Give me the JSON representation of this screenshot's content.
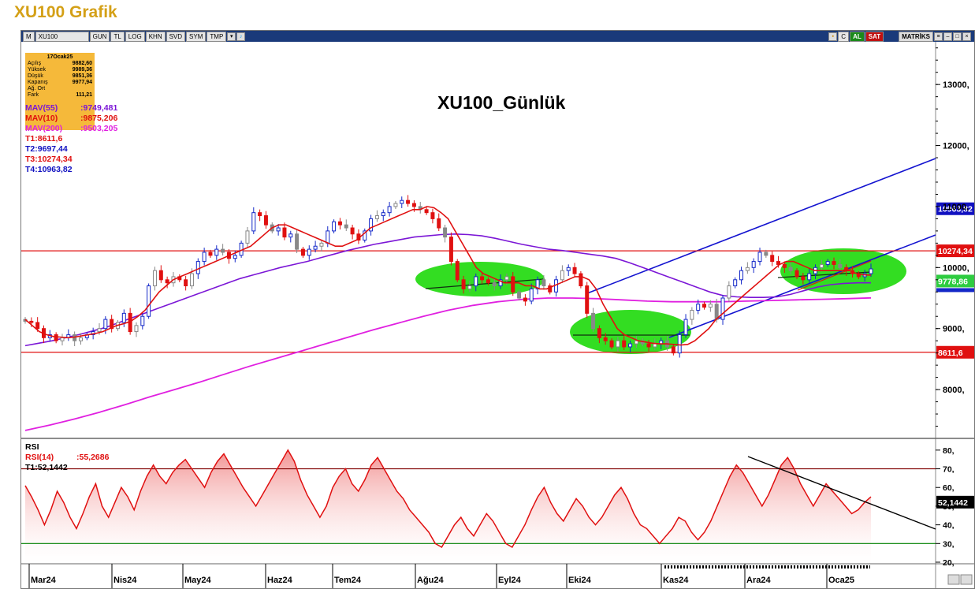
{
  "page": {
    "title": "XU100 Grafik"
  },
  "toolbar": {
    "symbol_label": "XU100",
    "buttons": [
      "GUN",
      "TL",
      "LOG",
      "KHN",
      "SVD",
      "SYM",
      "TMP"
    ],
    "right_buttons": {
      "c_label": "C",
      "al_label": "AL",
      "sat_label": "SAT",
      "matriks_label": "MATRİKS"
    }
  },
  "info_box": {
    "date": "17Ocak25",
    "rows": [
      {
        "label": "Açılış",
        "value": "9882,60"
      },
      {
        "label": "Yüksek",
        "value": "9989,36"
      },
      {
        "label": "Düşük",
        "value": "9851,36"
      },
      {
        "label": "Kapanış",
        "value": "9977,94"
      },
      {
        "label": "Ağ. Ort",
        "value": ""
      },
      {
        "label": "Fark",
        "value": "111,21"
      }
    ]
  },
  "legend": [
    {
      "name": "MAV(55)",
      "value": ":9749,481",
      "color": "#7b16d6"
    },
    {
      "name": "MAV(10)",
      "value": ":9875,206",
      "color": "#e01010"
    },
    {
      "name": "MAV(200)",
      "value": ":9503,205",
      "color": "#e020e0"
    },
    {
      "name": "T1:8611,6",
      "value": "",
      "color": "#e01010"
    },
    {
      "name": "T2:9697,44",
      "value": "",
      "color": "#1010c0"
    },
    {
      "name": "T3:10274,34",
      "value": "",
      "color": "#e01010"
    },
    {
      "name": "T4:10963,82",
      "value": "",
      "color": "#1010c0"
    }
  ],
  "rsi_legend": [
    {
      "name": "RSI",
      "value": "",
      "color": "#000000"
    },
    {
      "name": "RSI(14)",
      "value": ":55,2686",
      "color": "#e01010"
    },
    {
      "name": "T1:52,1442",
      "value": "",
      "color": "#000000"
    }
  ],
  "chart_data": {
    "type": "candlestick",
    "title": "XU100_Günlük",
    "x_ticks": [
      "Mar24",
      "Nis24",
      "May24",
      "Haz24",
      "Tem24",
      "Ağu24",
      "Eyl24",
      "Eki24",
      "Kas24",
      "Ara24",
      "Oca25"
    ],
    "y_ticks": [
      "13000,",
      "12000,",
      "11000,",
      "10000,",
      "9000,",
      "8000,"
    ],
    "y_tick_values": [
      13000,
      12000,
      11000,
      10000,
      9000,
      8000
    ],
    "ylim": [
      7200,
      13700
    ],
    "close_series": [
      9120,
      9100,
      9000,
      8850,
      8900,
      8800,
      8850,
      8900,
      8800,
      8850,
      8900,
      8950,
      9000,
      9150,
      9000,
      9100,
      9250,
      8950,
      9050,
      9200,
      9700,
      9950,
      9800,
      9750,
      9850,
      9800,
      9700,
      9900,
      10100,
      10250,
      10200,
      10300,
      10250,
      10150,
      10200,
      10400,
      10600,
      10900,
      10850,
      10700,
      10600,
      10650,
      10500,
      10550,
      10300,
      10200,
      10300,
      10350,
      10400,
      10600,
      10750,
      10700,
      10650,
      10550,
      10450,
      10600,
      10800,
      10850,
      10900,
      11000,
      11050,
      11100,
      11050,
      11000,
      10950,
      10900,
      10800,
      10650,
      10500,
      10100,
      9800,
      9650,
      9700,
      9850,
      9800,
      9750,
      9700,
      9800,
      9850,
      9600,
      9500,
      9450,
      9650,
      9800,
      9700,
      9600,
      9800,
      9950,
      10000,
      9900,
      9700,
      9250,
      9000,
      8850,
      8800,
      8700,
      8800,
      8700,
      8750,
      8800,
      8750,
      8700,
      8750,
      8800,
      8700,
      8600,
      8900,
      9150,
      9300,
      9400,
      9350,
      9400,
      9150,
      9500,
      9700,
      9800,
      9950,
      10000,
      10100,
      10250,
      10200,
      10100,
      10050,
      10000,
      9950,
      9850,
      9800,
      9900,
      10000,
      10050,
      10100,
      10050,
      10000,
      9950,
      9900,
      9850,
      9900,
      9978
    ],
    "series": [
      {
        "name": "MAV(10)",
        "color": "#e01010",
        "values": [
          9150,
          9050,
          8950,
          8900,
          8870,
          8860,
          8850,
          8860,
          8880,
          8900,
          8920,
          8950,
          9000,
          9050,
          9080,
          9120,
          9200,
          9300,
          9450,
          9600,
          9700,
          9800,
          9850,
          9900,
          9950,
          10000,
          10050,
          10100,
          10150,
          10200,
          10250,
          10300,
          10350,
          10450,
          10550,
          10650,
          10700,
          10700,
          10650,
          10600,
          10550,
          10500,
          10450,
          10400,
          10350,
          10350,
          10400,
          10450,
          10550,
          10650,
          10700,
          10750,
          10800,
          10850,
          10900,
          10950,
          10950,
          11000,
          10980,
          10900,
          10800,
          10600,
          10400,
          10200,
          10000,
          9900,
          9850,
          9800,
          9750,
          9750,
          9750,
          9700,
          9700,
          9650,
          9650,
          9700,
          9750,
          9800,
          9850,
          9850,
          9800,
          9650,
          9400,
          9200,
          9000,
          8900,
          8850,
          8800,
          8780,
          8760,
          8750,
          8750,
          8740,
          8730,
          8740,
          8800,
          8900,
          9000,
          9150,
          9250,
          9350,
          9450,
          9550,
          9650,
          9750,
          9850,
          9950,
          10050,
          10100,
          10100,
          10050,
          10000,
          9950,
          9950,
          9950,
          9950,
          9950,
          9950,
          9900,
          9880,
          9875
        ]
      },
      {
        "name": "MAV(55)",
        "color": "#7b16d6",
        "values": [
          8720,
          8760,
          8800,
          8850,
          8900,
          8960,
          9020,
          9100,
          9180,
          9260,
          9340,
          9420,
          9500,
          9580,
          9660,
          9740,
          9820,
          9880,
          9940,
          10000,
          10050,
          10100,
          10160,
          10220,
          10280,
          10330,
          10380,
          10420,
          10460,
          10500,
          10520,
          10540,
          10550,
          10540,
          10520,
          10480,
          10430,
          10380,
          10340,
          10300,
          10280,
          10250,
          10220,
          10190,
          10150,
          10080,
          10000,
          9920,
          9840,
          9760,
          9680,
          9600,
          9540,
          9520,
          9510,
          9510,
          9520,
          9560,
          9620,
          9680,
          9720,
          9740,
          9750,
          9750
        ]
      },
      {
        "name": "MAV(200)",
        "color": "#e020e0",
        "values": [
          7330,
          7420,
          7520,
          7630,
          7750,
          7880,
          8000,
          8120,
          8250,
          8380,
          8500,
          8620,
          8740,
          8860,
          8980,
          9090,
          9200,
          9300,
          9380,
          9440,
          9480,
          9500,
          9500,
          9490,
          9470,
          9450,
          9440,
          9440,
          9440,
          9450,
          9460,
          9470,
          9480,
          9490,
          9503
        ]
      }
    ],
    "horizontal_lines": [
      {
        "name": "T1",
        "value": 8611.6,
        "color": "#e01010",
        "label": "8611,6"
      },
      {
        "name": "T3",
        "value": 10274.34,
        "color": "#e01010",
        "label": "10274,34"
      }
    ],
    "price_labels": [
      {
        "label": "10963,82",
        "value": 10963.82,
        "color": "#1010c0"
      },
      {
        "label": "10274,34",
        "value": 10274.34,
        "color": "#e01010"
      },
      {
        "label": "9778,86",
        "value": 9778.86,
        "color": "#2ecc40"
      },
      {
        "label": "8611,6",
        "value": 8611.6,
        "color": "#e01010"
      }
    ],
    "rsi": {
      "name": "RSI(14)",
      "ylim": [
        20,
        85
      ],
      "y_ticks": [
        "80,",
        "70,",
        "60,",
        "50,",
        "40,",
        "30,",
        "20,"
      ],
      "y_tick_values": [
        80,
        70,
        60,
        50,
        40,
        30,
        20
      ],
      "levels": [
        {
          "value": 70,
          "color": "#800000"
        },
        {
          "value": 30,
          "color": "#008000"
        }
      ],
      "current_label": "52,1442",
      "values": [
        61,
        55,
        48,
        40,
        48,
        58,
        52,
        44,
        38,
        46,
        55,
        62,
        50,
        44,
        52,
        60,
        55,
        48,
        58,
        66,
        72,
        66,
        62,
        68,
        72,
        75,
        70,
        65,
        60,
        68,
        74,
        78,
        72,
        66,
        60,
        55,
        50,
        56,
        62,
        68,
        74,
        80,
        74,
        64,
        56,
        50,
        44,
        50,
        60,
        66,
        70,
        62,
        58,
        64,
        72,
        76,
        70,
        64,
        58,
        54,
        48,
        44,
        40,
        36,
        30,
        28,
        34,
        40,
        44,
        38,
        34,
        40,
        46,
        42,
        36,
        30,
        28,
        34,
        40,
        48,
        55,
        60,
        52,
        46,
        42,
        48,
        54,
        50,
        44,
        40,
        44,
        50,
        56,
        60,
        54,
        46,
        40,
        38,
        34,
        30,
        34,
        38,
        44,
        42,
        36,
        32,
        36,
        42,
        50,
        58,
        66,
        72,
        68,
        62,
        56,
        50,
        56,
        64,
        72,
        76,
        70,
        62,
        56,
        50,
        56,
        62,
        58,
        54,
        50,
        46,
        48,
        52,
        55
      ]
    }
  }
}
